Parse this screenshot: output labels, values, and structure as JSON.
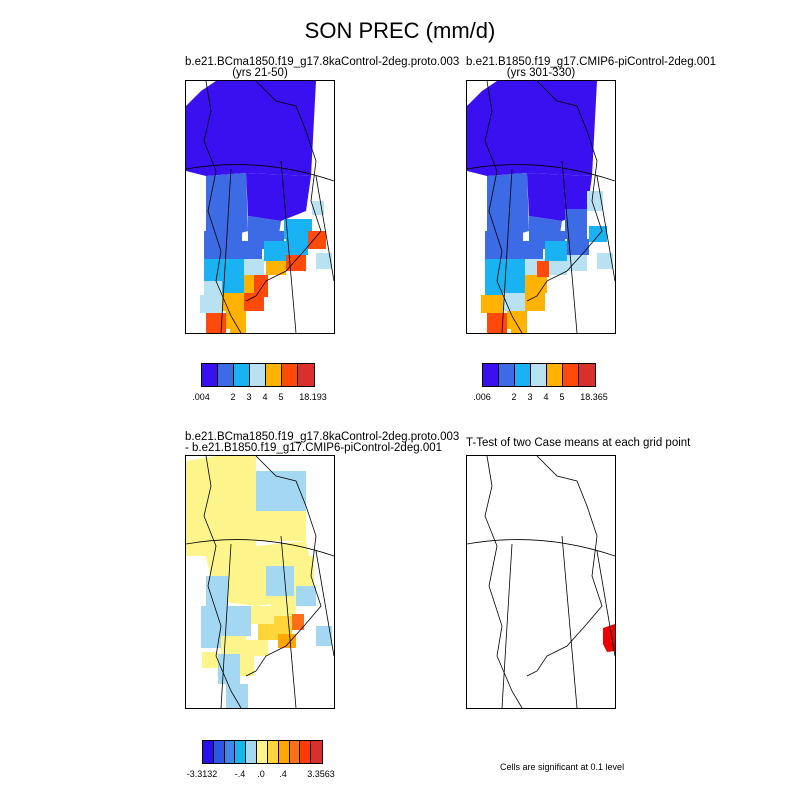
{
  "title": "SON PREC (mm/d)",
  "colors": {
    "c1": "#3a0ff0",
    "c2": "#3d6be6",
    "c3": "#19b2f2",
    "c4": "#b8e2f2",
    "c5": "#ffb300",
    "c6": "#ff4a0a",
    "c7": "#d9302c",
    "d1": "#2a10ee",
    "d2": "#2f56e2",
    "d3": "#3d87ea",
    "d4": "#17b4ee",
    "d5": "#a4d7f2",
    "d6": "#fdf58c",
    "d7": "#ffd53a",
    "d8": "#ffa600",
    "d9": "#ff7018",
    "d10": "#ff3a0c",
    "d11": "#d9302c",
    "sig": "#ee0000"
  },
  "panels": {
    "p1": {
      "title_line1": "b.e21.BCma1850.f19_g17.8kaControl-2deg.proto.003",
      "title_line2": "(yrs 21-50)",
      "legend_labels": [
        ".004",
        "2",
        "3",
        "4",
        "5",
        "18.193"
      ]
    },
    "p2": {
      "title_line1": "b.e21.B1850.f19_g17.CMIP6-piControl-2deg.001",
      "title_line2": "(yrs 301-330)",
      "legend_labels": [
        ".006",
        "2",
        "3",
        "4",
        "5",
        "18.365"
      ]
    },
    "p3": {
      "title_line1": "b.e21.BCma1850.f19_g17.8kaControl-2deg.proto.003",
      "title_line2": "- b.e21.B1850.f19_g17.CMIP6-piControl-2deg.001",
      "legend_labels": [
        "-3.3132",
        "-.4",
        ".0",
        ".4",
        "3.3563"
      ]
    },
    "p4": {
      "title_line1": "T-Test of two Case means at each grid point",
      "note": "Cells are significant at 0.1 level"
    }
  }
}
